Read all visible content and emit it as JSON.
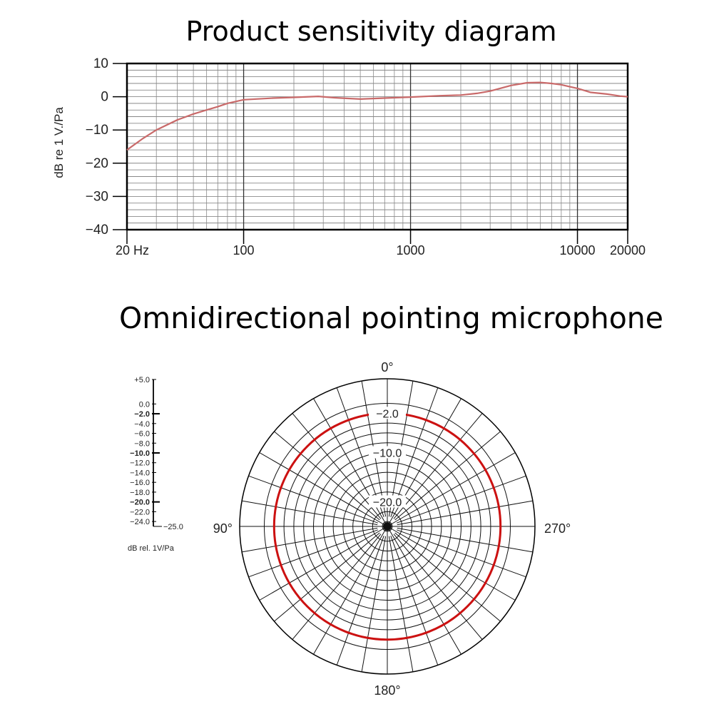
{
  "titles": {
    "sensitivity": "Product sensitivity diagram",
    "polar": "Omnidirectional pointing microphone"
  },
  "colors": {
    "curve": "#c96a6a",
    "polar_curve": "#cc1111",
    "grid": "#000000"
  },
  "chart_data": [
    {
      "type": "line",
      "title": "Product sensitivity diagram",
      "xlabel": "",
      "ylabel": "dB re 1 V./Pa",
      "xscale": "log",
      "xlim": [
        20,
        20000
      ],
      "ylim": [
        -40,
        10
      ],
      "xticks": [
        20,
        100,
        1000,
        10000,
        20000
      ],
      "xticklabels": [
        "20 Hz",
        "100",
        "1000",
        "10000",
        "20000"
      ],
      "yticks": [
        10,
        0,
        -10,
        -20,
        -30,
        -40
      ],
      "yticklabels": [
        "10",
        "0",
        "−10",
        "−20",
        "−30",
        "−40"
      ],
      "grid": true,
      "series": [
        {
          "x": [
            20,
            25,
            30,
            40,
            50,
            60,
            70,
            80,
            100,
            150,
            200,
            280,
            350,
            500,
            700,
            1000,
            1500,
            2000,
            2500,
            3000,
            4000,
            5000,
            6000,
            7000,
            8000,
            9000,
            10000,
            12000,
            15000,
            18000,
            20000
          ],
          "y": [
            -16,
            -12.5,
            -10,
            -7,
            -5.2,
            -4,
            -3,
            -2,
            -0.9,
            -0.4,
            -0.2,
            0.1,
            -0.3,
            -0.7,
            -0.4,
            -0.1,
            0.3,
            0.5,
            1.0,
            1.7,
            3.4,
            4.2,
            4.3,
            4.0,
            3.6,
            3.0,
            2.5,
            1.3,
            0.8,
            0.2,
            0.0
          ]
        }
      ]
    },
    {
      "type": "polar",
      "title": "Omnidirectional pointing microphone",
      "angle_labels": [
        "0°",
        "90°",
        "180°",
        "270°"
      ],
      "ring_labels": [
        "−2.0",
        "−10.0",
        "−20.0"
      ],
      "scale_labels": [
        "+5.0",
        "0.0",
        "−2.0",
        "−4.0",
        "−6.0",
        "−8.0",
        "−10.0",
        "−12.0",
        "−14.0",
        "−16.0",
        "−18.0",
        "−20.0",
        "−22.0",
        "−24.0",
        "−25.0"
      ],
      "scale_unit": "dB rel. 1V/Pa",
      "rlim": [
        -25,
        5
      ],
      "series": [
        {
          "response_db": -2.0
        }
      ]
    }
  ]
}
